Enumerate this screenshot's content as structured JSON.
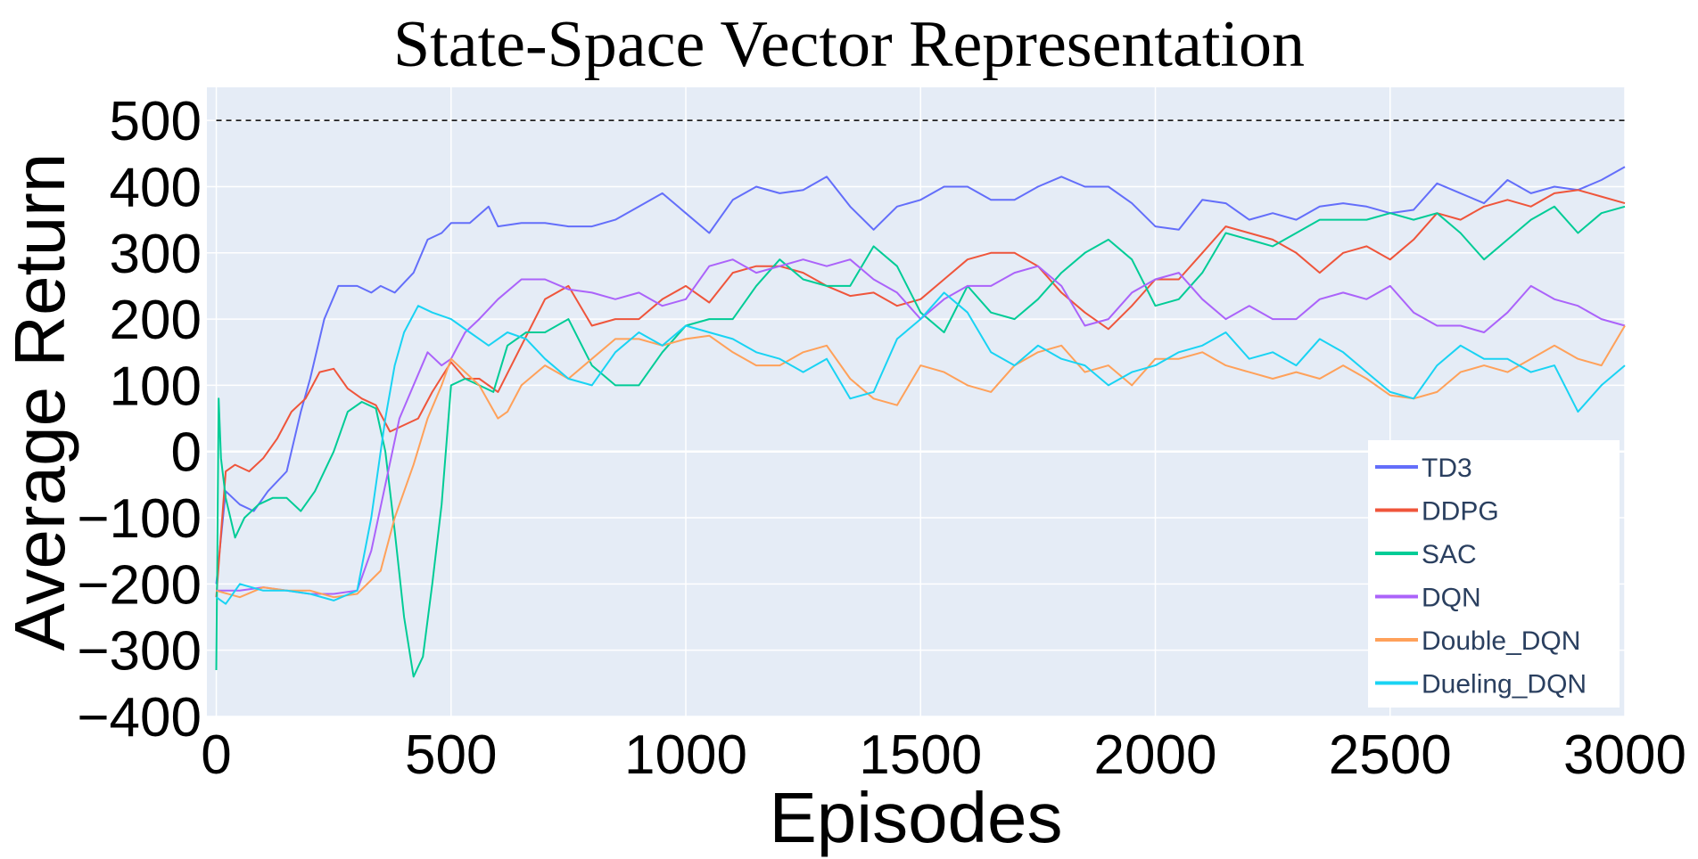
{
  "chart_data": {
    "type": "line",
    "title": "State-Space Vector Representation",
    "xlabel": "Episodes",
    "ylabel": "Average Return",
    "xlim": [
      -20,
      3000
    ],
    "ylim": [
      -400,
      550
    ],
    "xticks": [
      0,
      500,
      1000,
      1500,
      2000,
      2500,
      3000
    ],
    "xtick_labels": [
      "0",
      "500",
      "1000",
      "1500",
      "2000",
      "2500",
      "3000"
    ],
    "yticks": [
      -400,
      -300,
      -200,
      -100,
      0,
      100,
      200,
      300,
      400,
      500
    ],
    "ytick_labels": [
      "−400",
      "−300",
      "−200",
      "−100",
      "0",
      "100",
      "200",
      "300",
      "400",
      "500"
    ],
    "grid": true,
    "background": "#e5ecf6",
    "reference_line": {
      "y": 500,
      "style": "dashed",
      "color": "#000000"
    },
    "legend_position": "bottom-right",
    "series": [
      {
        "name": "TD3",
        "color": "#636efa",
        "x": [
          0,
          20,
          50,
          80,
          110,
          150,
          180,
          200,
          230,
          260,
          300,
          330,
          350,
          380,
          420,
          450,
          480,
          500,
          540,
          580,
          600,
          650,
          700,
          750,
          800,
          850,
          900,
          950,
          1000,
          1050,
          1100,
          1150,
          1200,
          1250,
          1300,
          1350,
          1400,
          1450,
          1500,
          1550,
          1600,
          1650,
          1700,
          1750,
          1800,
          1850,
          1900,
          1950,
          2000,
          2050,
          2100,
          2150,
          2200,
          2250,
          2300,
          2350,
          2400,
          2450,
          2500,
          2550,
          2600,
          2650,
          2700,
          2750,
          2800,
          2850,
          2900,
          2950,
          3000
        ],
        "y": [
          -200,
          -60,
          -80,
          -90,
          -60,
          -30,
          60,
          110,
          200,
          250,
          250,
          240,
          250,
          240,
          270,
          320,
          330,
          345,
          345,
          370,
          340,
          345,
          345,
          340,
          340,
          350,
          370,
          390,
          360,
          330,
          380,
          400,
          390,
          395,
          415,
          370,
          335,
          370,
          380,
          400,
          400,
          380,
          380,
          400,
          415,
          400,
          400,
          375,
          340,
          335,
          380,
          375,
          350,
          360,
          350,
          370,
          375,
          370,
          360,
          365,
          405,
          390,
          375,
          410,
          390,
          400,
          395,
          410,
          430
        ]
      },
      {
        "name": "DDPG",
        "color": "#ef553b",
        "x": [
          0,
          20,
          40,
          70,
          100,
          130,
          160,
          190,
          220,
          250,
          280,
          310,
          340,
          370,
          400,
          430,
          460,
          500,
          530,
          560,
          600,
          650,
          700,
          750,
          800,
          850,
          900,
          950,
          1000,
          1050,
          1100,
          1150,
          1200,
          1250,
          1300,
          1350,
          1400,
          1450,
          1500,
          1550,
          1600,
          1650,
          1700,
          1750,
          1800,
          1850,
          1900,
          1950,
          2000,
          2050,
          2100,
          2150,
          2200,
          2250,
          2300,
          2350,
          2400,
          2450,
          2500,
          2550,
          2600,
          2650,
          2700,
          2750,
          2800,
          2850,
          2900,
          2950,
          3000
        ],
        "y": [
          -220,
          -30,
          -20,
          -30,
          -10,
          20,
          60,
          80,
          120,
          125,
          95,
          80,
          70,
          30,
          40,
          50,
          90,
          135,
          110,
          110,
          90,
          160,
          230,
          250,
          190,
          200,
          200,
          230,
          250,
          225,
          270,
          280,
          280,
          270,
          250,
          235,
          240,
          220,
          230,
          260,
          290,
          300,
          300,
          280,
          240,
          210,
          185,
          220,
          260,
          260,
          300,
          340,
          330,
          320,
          300,
          270,
          300,
          310,
          290,
          320,
          360,
          350,
          370,
          380,
          370,
          390,
          395,
          385,
          375
        ]
      },
      {
        "name": "SAC",
        "color": "#00cc96",
        "x": [
          0,
          5,
          10,
          20,
          40,
          60,
          90,
          120,
          150,
          180,
          210,
          250,
          280,
          310,
          340,
          360,
          380,
          400,
          420,
          440,
          460,
          480,
          500,
          530,
          560,
          590,
          620,
          660,
          700,
          750,
          800,
          850,
          900,
          950,
          1000,
          1050,
          1100,
          1150,
          1200,
          1250,
          1300,
          1350,
          1400,
          1450,
          1500,
          1550,
          1600,
          1650,
          1700,
          1750,
          1800,
          1850,
          1900,
          1950,
          2000,
          2050,
          2100,
          2150,
          2200,
          2250,
          2300,
          2350,
          2400,
          2450,
          2500,
          2550,
          2600,
          2650,
          2700,
          2750,
          2800,
          2850,
          2900,
          2950,
          3000
        ],
        "y": [
          -330,
          80,
          -10,
          -70,
          -130,
          -100,
          -80,
          -70,
          -70,
          -90,
          -60,
          0,
          60,
          75,
          65,
          0,
          -120,
          -250,
          -340,
          -310,
          -200,
          -80,
          100,
          110,
          100,
          90,
          160,
          180,
          180,
          200,
          130,
          100,
          100,
          150,
          190,
          200,
          200,
          250,
          290,
          260,
          250,
          250,
          310,
          280,
          210,
          180,
          250,
          210,
          200,
          230,
          270,
          300,
          320,
          290,
          220,
          230,
          270,
          330,
          320,
          310,
          330,
          350,
          350,
          350,
          360,
          350,
          360,
          330,
          290,
          320,
          350,
          370,
          330,
          360,
          370
        ]
      },
      {
        "name": "DQN",
        "color": "#ab63fa",
        "x": [
          0,
          50,
          100,
          150,
          200,
          250,
          300,
          330,
          360,
          390,
          420,
          450,
          480,
          500,
          530,
          560,
          600,
          650,
          700,
          750,
          800,
          850,
          900,
          950,
          1000,
          1050,
          1100,
          1150,
          1200,
          1250,
          1300,
          1350,
          1400,
          1450,
          1500,
          1550,
          1600,
          1650,
          1700,
          1750,
          1800,
          1850,
          1900,
          1950,
          2000,
          2050,
          2100,
          2150,
          2200,
          2250,
          2300,
          2350,
          2400,
          2450,
          2500,
          2550,
          2600,
          2650,
          2700,
          2750,
          2800,
          2850,
          2900,
          2950,
          3000
        ],
        "y": [
          -210,
          -210,
          -205,
          -210,
          -215,
          -215,
          -210,
          -150,
          -50,
          50,
          100,
          150,
          130,
          140,
          180,
          200,
          230,
          260,
          260,
          245,
          240,
          230,
          240,
          220,
          230,
          280,
          290,
          270,
          280,
          290,
          280,
          290,
          260,
          240,
          200,
          230,
          250,
          250,
          270,
          280,
          250,
          190,
          200,
          240,
          260,
          270,
          230,
          200,
          220,
          200,
          200,
          230,
          240,
          230,
          250,
          210,
          190,
          190,
          180,
          210,
          250,
          230,
          220,
          200,
          190
        ]
      },
      {
        "name": "Double_DQN",
        "color": "#ffa15a",
        "x": [
          0,
          50,
          100,
          150,
          200,
          250,
          300,
          350,
          380,
          420,
          450,
          480,
          500,
          530,
          560,
          600,
          620,
          650,
          700,
          750,
          800,
          850,
          900,
          950,
          1000,
          1050,
          1100,
          1150,
          1200,
          1250,
          1300,
          1350,
          1400,
          1450,
          1500,
          1550,
          1600,
          1650,
          1700,
          1750,
          1800,
          1850,
          1900,
          1950,
          2000,
          2050,
          2100,
          2150,
          2200,
          2250,
          2300,
          2350,
          2400,
          2450,
          2500,
          2550,
          2600,
          2650,
          2700,
          2750,
          2800,
          2850,
          2900,
          2950,
          3000
        ],
        "y": [
          -210,
          -220,
          -205,
          -210,
          -210,
          -220,
          -215,
          -180,
          -100,
          -20,
          50,
          100,
          140,
          120,
          100,
          50,
          60,
          100,
          130,
          110,
          140,
          170,
          170,
          160,
          170,
          175,
          150,
          130,
          130,
          150,
          160,
          110,
          80,
          70,
          130,
          120,
          100,
          90,
          130,
          150,
          160,
          120,
          130,
          100,
          140,
          140,
          150,
          130,
          120,
          110,
          120,
          110,
          130,
          110,
          85,
          80,
          90,
          120,
          130,
          120,
          140,
          160,
          140,
          130,
          190
        ]
      },
      {
        "name": "Dueling_DQN",
        "color": "#19d3f3",
        "x": [
          0,
          20,
          50,
          100,
          150,
          200,
          250,
          300,
          330,
          360,
          380,
          400,
          430,
          460,
          500,
          540,
          580,
          620,
          660,
          700,
          750,
          800,
          850,
          900,
          950,
          1000,
          1050,
          1100,
          1150,
          1200,
          1250,
          1300,
          1350,
          1400,
          1450,
          1500,
          1550,
          1600,
          1650,
          1700,
          1750,
          1800,
          1850,
          1900,
          1950,
          2000,
          2050,
          2100,
          2150,
          2200,
          2250,
          2300,
          2350,
          2400,
          2450,
          2500,
          2550,
          2600,
          2650,
          2700,
          2750,
          2800,
          2850,
          2900,
          2950,
          3000
        ],
        "y": [
          -220,
          -230,
          -200,
          -210,
          -210,
          -215,
          -225,
          -210,
          -100,
          50,
          130,
          180,
          220,
          210,
          200,
          180,
          160,
          180,
          170,
          140,
          110,
          100,
          150,
          180,
          160,
          190,
          180,
          170,
          150,
          140,
          120,
          140,
          80,
          90,
          170,
          200,
          240,
          210,
          150,
          130,
          160,
          140,
          130,
          100,
          120,
          130,
          150,
          160,
          180,
          140,
          150,
          130,
          170,
          150,
          120,
          90,
          80,
          130,
          160,
          140,
          140,
          120,
          130,
          60,
          100,
          130
        ]
      }
    ]
  }
}
